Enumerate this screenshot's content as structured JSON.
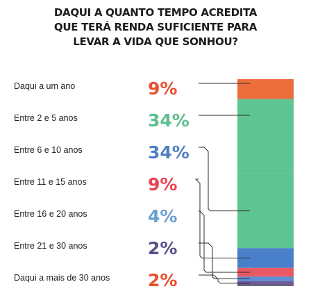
{
  "chart_data": {
    "type": "bar",
    "title_lines": [
      "DAQUI A QUANTO TEMPO ACREDITA",
      "QUE TERÁ RENDA SUFICIENTE PARA",
      "LEVAR A VIDA QUE SONHOU?"
    ],
    "categories": [
      "Daqui a um ano",
      "Entre 2 e 5 anos",
      "Entre 6 e 10 anos",
      "Entre 11 e 15 anos",
      "Entre 16 e 20 anos",
      "Entre 21 e 30 anos",
      "Daqui a mais de 30 anos"
    ],
    "values": [
      9,
      34,
      34,
      9,
      4,
      2,
      2
    ],
    "value_labels": [
      "9%",
      "34%",
      "34%",
      "9%",
      "4%",
      "2%",
      "2%"
    ],
    "label_colors": [
      "#e8502e",
      "#5dbe8e",
      "#4f7fc4",
      "#e8434f",
      "#6a9fd0",
      "#5c4e8c",
      "#e8502e"
    ],
    "segment_colors": [
      "#ec6c3c",
      "#5ec491",
      "#5ec491",
      "#4a7fca",
      "#e85a63",
      "#5b8fd6",
      "#6a5c98"
    ],
    "stacked": true,
    "ylim": [
      0,
      100
    ]
  }
}
